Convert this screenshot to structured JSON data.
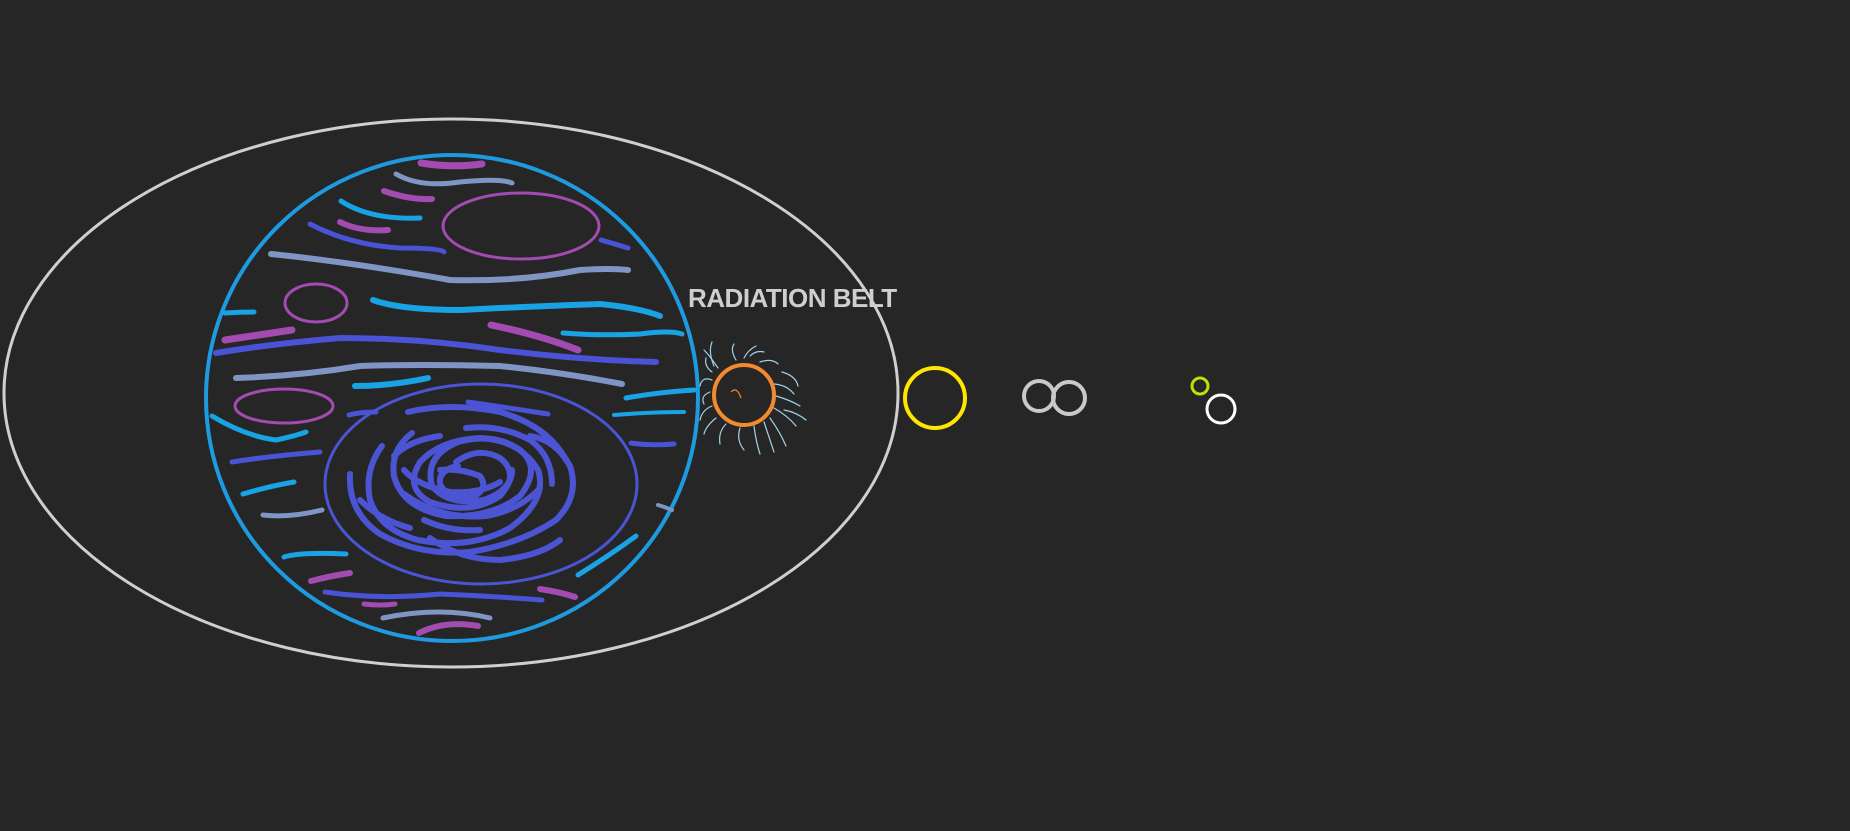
{
  "drawing": {
    "label": "RADIATION BELT",
    "icons": {
      "outer_boundary": "outer-ellipse-icon",
      "inner_sphere": "striped-sphere-icon",
      "vortex": "spiral-vortex-icon",
      "orange_body": "orange-circle-icon",
      "yellow_body": "yellow-circle-icon",
      "twin_bodies": "twin-circles-icon",
      "small_bodies": "small-circles-icon"
    },
    "colors": {
      "background": "#262626",
      "outer_ellipse": "#cfcfcf",
      "sphere_outline": "#1e9be0",
      "band_cyan": "#19a2e4",
      "band_indigo": "#4a52d6",
      "band_slate": "#7f96c4",
      "band_magenta": "#a24bb1",
      "vortex": "#4b55d4",
      "orange_body": "#f28a2f",
      "yellow_body": "#ffe600",
      "gray_bodies": "#c9c9c9",
      "lime_body": "#c4e000",
      "white_body": "#ffffff",
      "filaments": "#9fd2ea"
    }
  }
}
